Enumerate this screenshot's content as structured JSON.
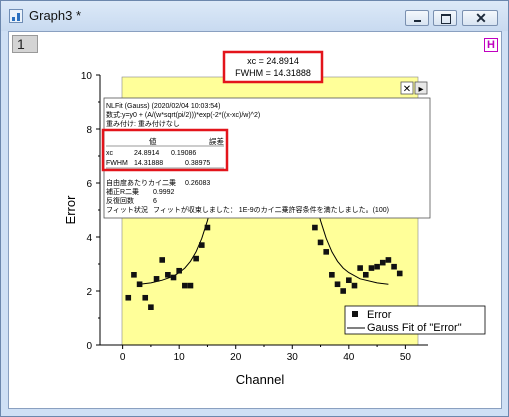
{
  "window": {
    "title": "Graph3 *"
  },
  "layer": {
    "index": "1"
  },
  "header_button": "H",
  "result_label": {
    "xc": "xc = 24.8914",
    "fwhm": "FWHM = 14.31888"
  },
  "report": {
    "lines": [
      "NLFit (Gauss) (2020/02/04 10:03:54)",
      "数式:y=y0 + (A/(w*sqrt(pi/2)))*exp(-2*((x-xc)/w)^2)",
      "重み付け: 重み付けなし"
    ],
    "table_header": {
      "value": "値",
      "error": "誤差"
    },
    "rows": [
      {
        "name": "xc",
        "value": "24.8914",
        "error": "0.19086"
      },
      {
        "name": "FWHM",
        "value": "14.31888",
        "error": "0.38975"
      }
    ],
    "stats": [
      {
        "label": "自由度あたりカイ二乗",
        "value": "0.26083"
      },
      {
        "label": "補正R二乗",
        "value": "0.9992"
      },
      {
        "label": "反復回数",
        "value": "6"
      },
      {
        "label": "フィット状況",
        "value": "フィットが収束しました： 1E-9のカイ二乗許容条件を満たしました。(100)"
      }
    ],
    "close_symbol": "✕",
    "menu_symbol": "▸"
  },
  "legend": {
    "entries": [
      "Error",
      "Gauss Fit of \"Error\""
    ]
  },
  "colors": {
    "panel": "#ffff99",
    "highlight": "#e3141b",
    "marker": "#111111"
  },
  "chart_data": {
    "type": "scatter",
    "xlabel": "Channel",
    "ylabel": "Error",
    "xlim": [
      -4,
      54
    ],
    "ylim": [
      0,
      10
    ],
    "xticks": [
      0,
      10,
      20,
      30,
      40,
      50
    ],
    "yticks": [
      0,
      2,
      4,
      6,
      8,
      10
    ],
    "series": [
      {
        "name": "Error",
        "x": [
          1,
          2,
          3,
          4,
          5,
          6,
          7,
          8,
          9,
          10,
          11,
          12,
          13,
          14,
          15,
          34,
          35,
          36,
          37,
          38,
          39,
          40,
          41,
          42,
          43,
          44,
          45,
          46,
          47,
          48,
          49
        ],
        "y": [
          1.75,
          2.6,
          2.25,
          1.75,
          1.4,
          2.45,
          3.15,
          2.6,
          2.5,
          2.75,
          2.2,
          2.2,
          3.2,
          3.7,
          4.35,
          4.35,
          3.8,
          3.45,
          2.6,
          2.25,
          2.0,
          2.4,
          2.2,
          2.85,
          2.6,
          2.85,
          2.9,
          3.05,
          3.15,
          2.9,
          2.65
        ]
      },
      {
        "name": "Gauss Fit of \"Error\"",
        "type": "line",
        "x": [
          3,
          5,
          7,
          9,
          10,
          11,
          12,
          13,
          14,
          15,
          15.5,
          16,
          34,
          34.5,
          35,
          36,
          37,
          38,
          39,
          40,
          42,
          45,
          47
        ],
        "y": [
          2.25,
          2.3,
          2.4,
          2.55,
          2.68,
          2.85,
          3.1,
          3.45,
          3.95,
          4.6,
          5.0,
          5.5,
          5.5,
          5.0,
          4.6,
          3.95,
          3.45,
          3.1,
          2.85,
          2.68,
          2.45,
          2.3,
          2.25
        ]
      }
    ]
  }
}
